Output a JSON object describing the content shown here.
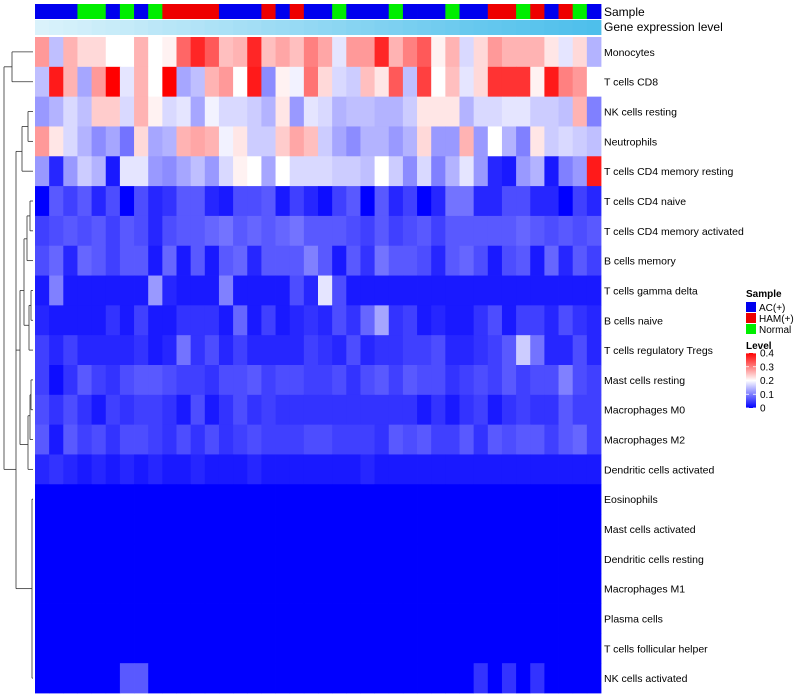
{
  "chart_data": {
    "type": "heatmap",
    "title": "",
    "annotation_tracks": [
      "Sample",
      "Gene expression level"
    ],
    "sample_groups": {
      "AC(+)": "#0000ee",
      "HAM(+)": "#ee0000",
      "Normal": "#00ee00"
    },
    "sample_annotation": [
      "AC(+)",
      "AC(+)",
      "AC(+)",
      "Normal",
      "Normal",
      "AC(+)",
      "Normal",
      "AC(+)",
      "Normal",
      "HAM(+)",
      "HAM(+)",
      "HAM(+)",
      "HAM(+)",
      "AC(+)",
      "AC(+)",
      "AC(+)",
      "HAM(+)",
      "AC(+)",
      "HAM(+)",
      "AC(+)",
      "AC(+)",
      "Normal",
      "AC(+)",
      "AC(+)",
      "AC(+)",
      "Normal",
      "AC(+)",
      "AC(+)",
      "AC(+)",
      "Normal",
      "AC(+)",
      "AC(+)",
      "HAM(+)",
      "HAM(+)",
      "Normal",
      "HAM(+)",
      "AC(+)",
      "HAM(+)",
      "Normal",
      "AC(+)"
    ],
    "gene_expression_level": [
      0.05,
      0.08,
      0.1,
      0.12,
      0.15,
      0.17,
      0.19,
      0.22,
      0.25,
      0.28,
      0.3,
      0.32,
      0.35,
      0.37,
      0.4,
      0.42,
      0.45,
      0.47,
      0.5,
      0.52,
      0.55,
      0.57,
      0.6,
      0.62,
      0.65,
      0.67,
      0.7,
      0.72,
      0.74,
      0.77,
      0.8,
      0.82,
      0.84,
      0.86,
      0.88,
      0.9,
      0.92,
      0.94,
      0.96,
      0.98
    ],
    "rows": [
      "Monocytes",
      "T cells CD8",
      "NK cells resting",
      "Neutrophils",
      "T cells CD4 memory resting",
      "T cells CD4 naive",
      "T cells CD4 memory activated",
      "B cells memory",
      "T cells gamma delta",
      "B cells naive",
      "T cells regulatory  Tregs",
      "Mast cells resting",
      "Macrophages M0",
      "Macrophages M2",
      "Dendritic cells activated",
      "Eosinophils",
      "Mast cells activated",
      "Dendritic cells resting",
      "Macrophages M1",
      "Plasma cells",
      "T cells follicular helper",
      "NK cells activated"
    ],
    "values": [
      [
        0.28,
        0.15,
        0.26,
        0.23,
        0.23,
        0.2,
        0.2,
        0.26,
        0.2,
        0.21,
        0.32,
        0.37,
        0.33,
        0.25,
        0.26,
        0.37,
        0.25,
        0.27,
        0.25,
        0.3,
        0.27,
        0.18,
        0.28,
        0.28,
        0.37,
        0.26,
        0.3,
        0.33,
        0.21,
        0.26,
        0.17,
        0.23,
        0.28,
        0.26,
        0.26,
        0.26,
        0.22,
        0.18,
        0.23,
        0.14
      ],
      [
        0.15,
        0.38,
        0.26,
        0.13,
        0.28,
        0.4,
        0.18,
        0.26,
        0.2,
        0.4,
        0.13,
        0.15,
        0.26,
        0.28,
        0.2,
        0.38,
        0.11,
        0.21,
        0.19,
        0.31,
        0.23,
        0.17,
        0.16,
        0.25,
        0.22,
        0.33,
        0.15,
        0.35,
        0.2,
        0.25,
        0.18,
        0.23,
        0.36,
        0.36,
        0.36,
        0.21,
        0.38,
        0.3,
        0.28,
        0.2
      ],
      [
        0.12,
        0.14,
        0.17,
        0.15,
        0.24,
        0.24,
        0.17,
        0.26,
        0.21,
        0.17,
        0.18,
        0.13,
        0.19,
        0.17,
        0.17,
        0.16,
        0.14,
        0.22,
        0.12,
        0.18,
        0.17,
        0.14,
        0.15,
        0.15,
        0.14,
        0.14,
        0.16,
        0.22,
        0.22,
        0.22,
        0.14,
        0.17,
        0.17,
        0.18,
        0.18,
        0.16,
        0.16,
        0.15,
        0.26,
        0.1
      ],
      [
        0.28,
        0.22,
        0.17,
        0.14,
        0.11,
        0.13,
        0.09,
        0.23,
        0.13,
        0.14,
        0.26,
        0.27,
        0.26,
        0.19,
        0.22,
        0.16,
        0.16,
        0.24,
        0.27,
        0.25,
        0.16,
        0.13,
        0.11,
        0.14,
        0.14,
        0.12,
        0.14,
        0.23,
        0.12,
        0.12,
        0.26,
        0.12,
        0.2,
        0.14,
        0.1,
        0.22,
        0.16,
        0.17,
        0.16,
        0.15
      ],
      [
        0.12,
        0.03,
        0.12,
        0.16,
        0.14,
        0.02,
        0.18,
        0.18,
        0.12,
        0.11,
        0.13,
        0.15,
        0.12,
        0.17,
        0.21,
        0.2,
        0.13,
        0.2,
        0.17,
        0.17,
        0.17,
        0.16,
        0.16,
        0.15,
        0.2,
        0.16,
        0.11,
        0.17,
        0.1,
        0.14,
        0.18,
        0.12,
        0.03,
        0.02,
        0.12,
        0.14,
        0.02,
        0.1,
        0.12,
        0.38
      ],
      [
        0.0,
        0.07,
        0.05,
        0.07,
        0.03,
        0.06,
        0.0,
        0.06,
        0.03,
        0.04,
        0.07,
        0.07,
        0.03,
        0.02,
        0.06,
        0.06,
        0.07,
        0.02,
        0.05,
        0.03,
        0.01,
        0.05,
        0.07,
        0.0,
        0.07,
        0.03,
        0.05,
        0.0,
        0.03,
        0.09,
        0.09,
        0.03,
        0.03,
        0.06,
        0.06,
        0.03,
        0.03,
        0.0,
        0.05,
        0.03
      ],
      [
        0.05,
        0.06,
        0.07,
        0.06,
        0.07,
        0.05,
        0.07,
        0.06,
        0.03,
        0.06,
        0.07,
        0.07,
        0.08,
        0.09,
        0.07,
        0.08,
        0.07,
        0.08,
        0.09,
        0.07,
        0.07,
        0.07,
        0.06,
        0.05,
        0.07,
        0.05,
        0.06,
        0.07,
        0.05,
        0.07,
        0.07,
        0.07,
        0.07,
        0.07,
        0.08,
        0.07,
        0.06,
        0.07,
        0.06,
        0.07
      ],
      [
        0.06,
        0.08,
        0.03,
        0.08,
        0.07,
        0.05,
        0.07,
        0.07,
        0.02,
        0.08,
        0.02,
        0.07,
        0.02,
        0.07,
        0.08,
        0.03,
        0.07,
        0.07,
        0.07,
        0.1,
        0.07,
        0.02,
        0.07,
        0.04,
        0.09,
        0.07,
        0.07,
        0.06,
        0.03,
        0.07,
        0.08,
        0.06,
        0.02,
        0.06,
        0.07,
        0.02,
        0.08,
        0.03,
        0.07,
        0.05
      ],
      [
        0.02,
        0.1,
        0.02,
        0.02,
        0.02,
        0.02,
        0.02,
        0.02,
        0.12,
        0.03,
        0.02,
        0.02,
        0.02,
        0.1,
        0.02,
        0.02,
        0.02,
        0.02,
        0.06,
        0.03,
        0.18,
        0.06,
        0.02,
        0.02,
        0.02,
        0.02,
        0.02,
        0.02,
        0.02,
        0.02,
        0.02,
        0.02,
        0.02,
        0.02,
        0.02,
        0.02,
        0.02,
        0.02,
        0.02,
        0.02
      ],
      [
        0.03,
        0.02,
        0.02,
        0.02,
        0.02,
        0.04,
        0.02,
        0.05,
        0.02,
        0.02,
        0.04,
        0.04,
        0.04,
        0.02,
        0.08,
        0.02,
        0.05,
        0.02,
        0.03,
        0.04,
        0.03,
        0.06,
        0.04,
        0.08,
        0.13,
        0.04,
        0.05,
        0.02,
        0.03,
        0.02,
        0.02,
        0.04,
        0.06,
        0.02,
        0.05,
        0.05,
        0.03,
        0.06,
        0.04,
        0.03
      ],
      [
        0.05,
        0.03,
        0.05,
        0.03,
        0.03,
        0.03,
        0.03,
        0.04,
        0.02,
        0.03,
        0.09,
        0.04,
        0.06,
        0.03,
        0.05,
        0.03,
        0.03,
        0.03,
        0.03,
        0.05,
        0.04,
        0.03,
        0.06,
        0.03,
        0.04,
        0.04,
        0.05,
        0.05,
        0.06,
        0.03,
        0.03,
        0.04,
        0.05,
        0.07,
        0.16,
        0.09,
        0.03,
        0.03,
        0.06,
        0.03
      ],
      [
        0.05,
        0.01,
        0.04,
        0.07,
        0.05,
        0.04,
        0.06,
        0.07,
        0.07,
        0.06,
        0.05,
        0.05,
        0.04,
        0.06,
        0.06,
        0.07,
        0.05,
        0.06,
        0.06,
        0.05,
        0.05,
        0.06,
        0.04,
        0.06,
        0.07,
        0.05,
        0.07,
        0.06,
        0.06,
        0.04,
        0.05,
        0.06,
        0.05,
        0.07,
        0.05,
        0.06,
        0.06,
        0.1,
        0.06,
        0.05
      ],
      [
        0.06,
        0.04,
        0.06,
        0.04,
        0.02,
        0.05,
        0.04,
        0.05,
        0.05,
        0.04,
        0.02,
        0.06,
        0.02,
        0.04,
        0.06,
        0.04,
        0.05,
        0.04,
        0.04,
        0.04,
        0.04,
        0.04,
        0.04,
        0.04,
        0.04,
        0.04,
        0.04,
        0.02,
        0.04,
        0.02,
        0.04,
        0.05,
        0.02,
        0.04,
        0.05,
        0.04,
        0.04,
        0.07,
        0.05,
        0.05
      ],
      [
        0.07,
        0.02,
        0.07,
        0.05,
        0.06,
        0.04,
        0.06,
        0.06,
        0.05,
        0.04,
        0.06,
        0.04,
        0.06,
        0.04,
        0.05,
        0.06,
        0.05,
        0.05,
        0.05,
        0.06,
        0.06,
        0.05,
        0.05,
        0.05,
        0.04,
        0.07,
        0.06,
        0.07,
        0.05,
        0.05,
        0.07,
        0.04,
        0.07,
        0.06,
        0.07,
        0.07,
        0.05,
        0.07,
        0.08,
        0.05
      ],
      [
        0.03,
        0.04,
        0.03,
        0.02,
        0.03,
        0.02,
        0.03,
        0.02,
        0.03,
        0.02,
        0.02,
        0.03,
        0.02,
        0.02,
        0.02,
        0.03,
        0.02,
        0.02,
        0.02,
        0.02,
        0.02,
        0.02,
        0.02,
        0.03,
        0.02,
        0.02,
        0.02,
        0.02,
        0.02,
        0.02,
        0.02,
        0.02,
        0.02,
        0.02,
        0.02,
        0.02,
        0.02,
        0.02,
        0.02,
        0.02
      ],
      [
        0.0,
        0.0,
        0.0,
        0.0,
        0.0,
        0.0,
        0.0,
        0.0,
        0.0,
        0.0,
        0.0,
        0.0,
        0.0,
        0.0,
        0.0,
        0.0,
        0.0,
        0.0,
        0.0,
        0.0,
        0.0,
        0.0,
        0.0,
        0.0,
        0.0,
        0.0,
        0.0,
        0.0,
        0.0,
        0.0,
        0.0,
        0.0,
        0.0,
        0.0,
        0.0,
        0.0,
        0.0,
        0.0,
        0.0,
        0.0
      ],
      [
        0.0,
        0.0,
        0.0,
        0.0,
        0.0,
        0.0,
        0.0,
        0.0,
        0.0,
        0.0,
        0.0,
        0.0,
        0.0,
        0.0,
        0.0,
        0.0,
        0.0,
        0.0,
        0.0,
        0.0,
        0.0,
        0.0,
        0.0,
        0.0,
        0.0,
        0.0,
        0.0,
        0.0,
        0.0,
        0.0,
        0.0,
        0.0,
        0.0,
        0.0,
        0.0,
        0.0,
        0.0,
        0.0,
        0.0,
        0.0
      ],
      [
        0.0,
        0.0,
        0.0,
        0.0,
        0.0,
        0.0,
        0.0,
        0.0,
        0.0,
        0.0,
        0.0,
        0.0,
        0.0,
        0.0,
        0.0,
        0.0,
        0.0,
        0.0,
        0.0,
        0.0,
        0.0,
        0.0,
        0.0,
        0.0,
        0.0,
        0.0,
        0.0,
        0.0,
        0.0,
        0.0,
        0.0,
        0.0,
        0.0,
        0.0,
        0.0,
        0.0,
        0.0,
        0.0,
        0.0,
        0.0
      ],
      [
        0.0,
        0.0,
        0.0,
        0.0,
        0.0,
        0.0,
        0.0,
        0.0,
        0.0,
        0.0,
        0.0,
        0.0,
        0.0,
        0.0,
        0.0,
        0.0,
        0.0,
        0.0,
        0.0,
        0.0,
        0.0,
        0.0,
        0.0,
        0.0,
        0.0,
        0.0,
        0.0,
        0.0,
        0.0,
        0.0,
        0.0,
        0.0,
        0.0,
        0.0,
        0.0,
        0.0,
        0.0,
        0.0,
        0.0,
        0.0
      ],
      [
        0.0,
        0.0,
        0.0,
        0.0,
        0.0,
        0.0,
        0.0,
        0.0,
        0.0,
        0.0,
        0.0,
        0.0,
        0.0,
        0.0,
        0.0,
        0.0,
        0.0,
        0.0,
        0.0,
        0.0,
        0.0,
        0.0,
        0.0,
        0.0,
        0.0,
        0.0,
        0.0,
        0.0,
        0.0,
        0.0,
        0.0,
        0.0,
        0.0,
        0.0,
        0.0,
        0.0,
        0.0,
        0.0,
        0.0,
        0.0
      ],
      [
        0.0,
        0.0,
        0.0,
        0.0,
        0.0,
        0.0,
        0.0,
        0.0,
        0.0,
        0.0,
        0.0,
        0.0,
        0.0,
        0.0,
        0.0,
        0.0,
        0.0,
        0.0,
        0.0,
        0.0,
        0.0,
        0.0,
        0.0,
        0.0,
        0.0,
        0.0,
        0.0,
        0.0,
        0.0,
        0.0,
        0.0,
        0.0,
        0.0,
        0.0,
        0.0,
        0.0,
        0.0,
        0.0,
        0.0,
        0.0
      ],
      [
        0.0,
        0.0,
        0.0,
        0.0,
        0.0,
        0.0,
        0.07,
        0.07,
        0.0,
        0.0,
        0.0,
        0.0,
        0.0,
        0.0,
        0.0,
        0.0,
        0.0,
        0.0,
        0.0,
        0.0,
        0.0,
        0.0,
        0.0,
        0.0,
        0.0,
        0.0,
        0.0,
        0.0,
        0.0,
        0.0,
        0.0,
        0.04,
        0.0,
        0.04,
        0.0,
        0.04,
        0.0,
        0.0,
        0.0,
        0.0
      ]
    ],
    "color_scale": {
      "min": 0,
      "mid": 0.2,
      "max": 0.4,
      "low": "#0000ff",
      "midColor": "#ffffff",
      "high": "#ff0000"
    },
    "legend": {
      "sample_title": "Sample",
      "sample_entries": [
        "AC(+)",
        "HAM(+)",
        "Normal"
      ],
      "level_title": "Level",
      "level_ticks": [
        "0.4",
        "0.3",
        "0.2",
        "0.1",
        "0"
      ],
      "level_tick_values": [
        0.4,
        0.3,
        0.2,
        0.1,
        0
      ],
      "placement": "right"
    }
  }
}
